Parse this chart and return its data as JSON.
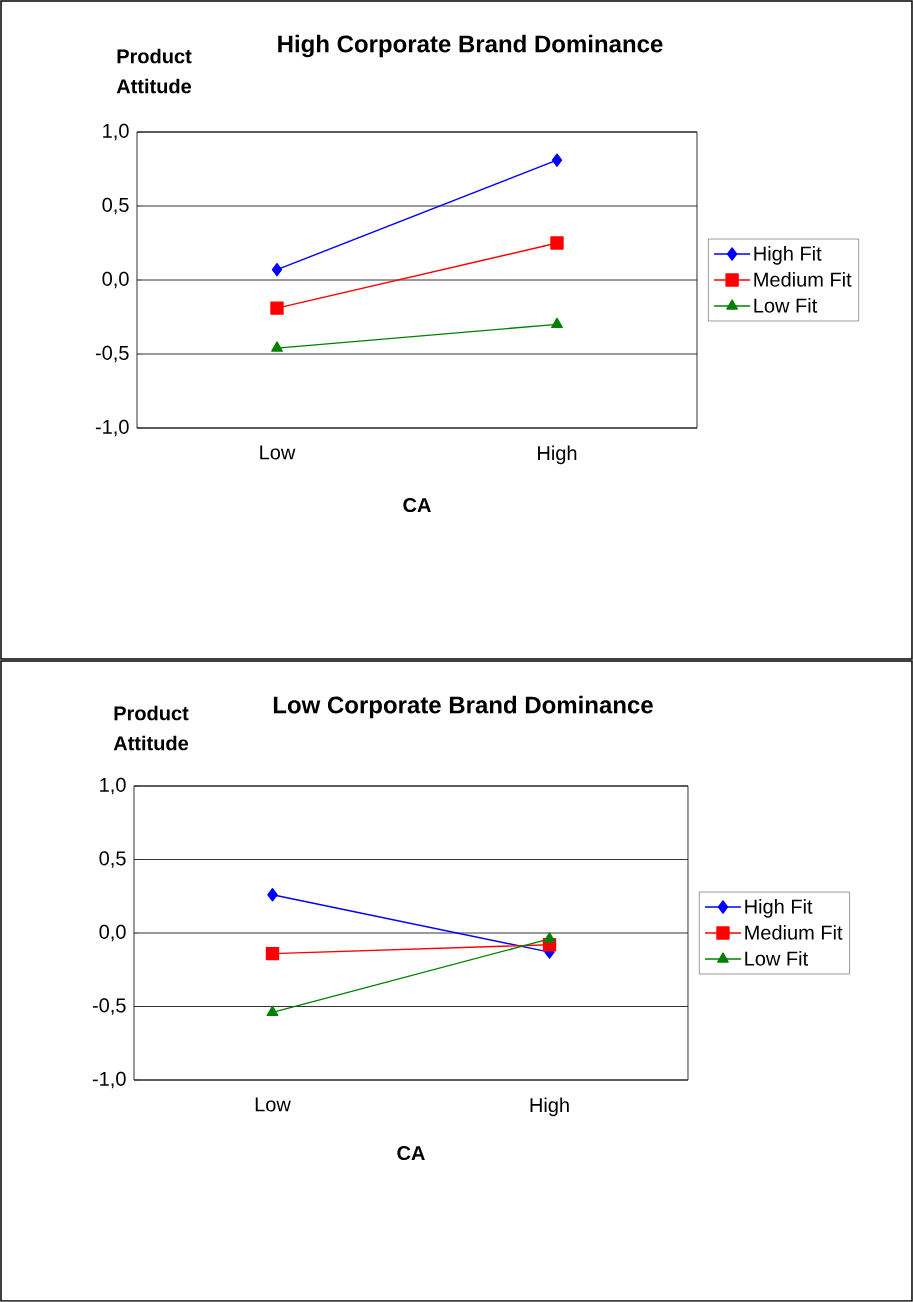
{
  "chart_data": [
    {
      "type": "line",
      "title": "High Corporate Brand Dominance",
      "ylabel": "Product Attitude",
      "xlabel": "CA",
      "categories": [
        "Low",
        "High"
      ],
      "series": [
        {
          "name": "High Fit",
          "color": "#0000ff",
          "marker": "diamond",
          "values": [
            0.07,
            0.81
          ]
        },
        {
          "name": "Medium Fit",
          "color": "#ff0000",
          "marker": "square",
          "values": [
            -0.19,
            0.25
          ]
        },
        {
          "name": "Low Fit",
          "color": "#008000",
          "marker": "triangle",
          "values": [
            -0.46,
            -0.3
          ]
        }
      ],
      "ylim": [
        -1,
        1
      ],
      "yticks": [
        {
          "value": -1,
          "label": "-1,0"
        },
        {
          "value": -0.5,
          "label": "-0,5"
        },
        {
          "value": 0,
          "label": "0,0"
        },
        {
          "value": 0.5,
          "label": "0,5"
        },
        {
          "value": 1,
          "label": "1,0"
        }
      ],
      "grid": "y",
      "legend": "right"
    },
    {
      "type": "line",
      "title": "Low Corporate Brand Dominance",
      "ylabel": "Product Attitude",
      "xlabel": "CA",
      "categories": [
        "Low",
        "High"
      ],
      "series": [
        {
          "name": "High Fit",
          "color": "#0000ff",
          "marker": "diamond",
          "values": [
            0.26,
            -0.13
          ]
        },
        {
          "name": "Medium Fit",
          "color": "#ff0000",
          "marker": "square",
          "values": [
            -0.14,
            -0.08
          ]
        },
        {
          "name": "Low Fit",
          "color": "#008000",
          "marker": "triangle",
          "values": [
            -0.54,
            -0.04
          ]
        }
      ],
      "ylim": [
        -1,
        1
      ],
      "yticks": [
        {
          "value": -1,
          "label": "-1,0"
        },
        {
          "value": -0.5,
          "label": "-0,5"
        },
        {
          "value": 0,
          "label": "0,0"
        },
        {
          "value": 0.5,
          "label": "0,5"
        },
        {
          "value": 1,
          "label": "1,0"
        }
      ],
      "grid": "y",
      "legend": "right"
    }
  ]
}
